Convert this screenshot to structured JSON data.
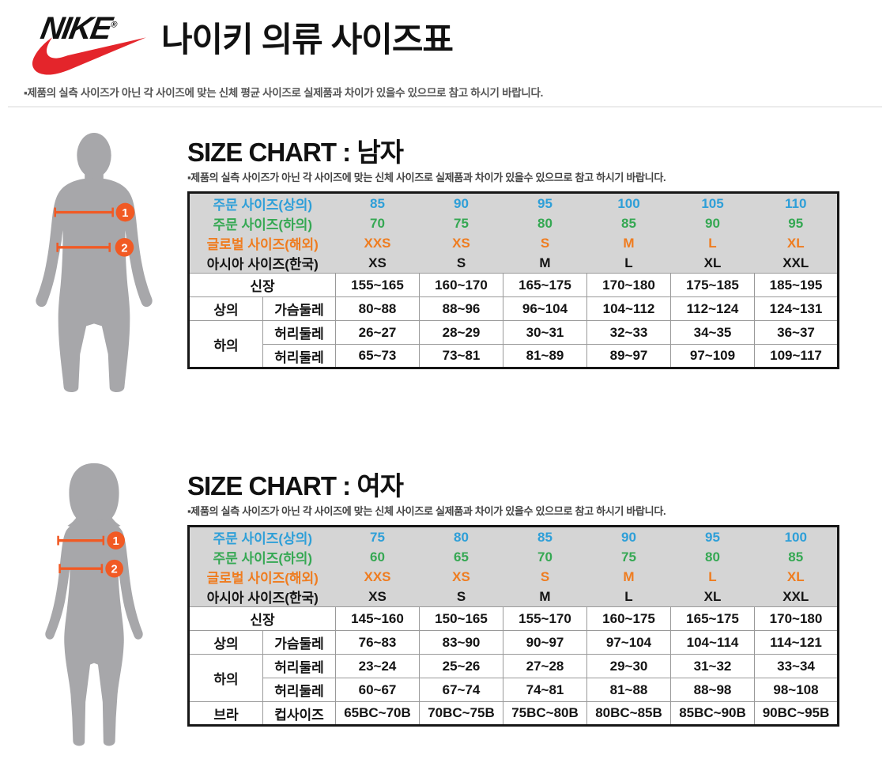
{
  "header": {
    "brand": "NIKE",
    "registered": "®",
    "title": "나이키 의류 사이즈표",
    "note": "▪제품의 실측 사이즈가 아닌 각 사이즈에 맞는 신체 평균 사이즈로 실제품과 차이가 있을수 있으므로 참고 하시기 바랍니다."
  },
  "colors": {
    "nike_red": "#e4252b",
    "accent_orange": "#f15a24",
    "silhouette_gray": "#a7a7aa",
    "table_header_bg": "#d5d5d5",
    "order_top_blue": "#2e9fd8",
    "order_bottom_green": "#35a853",
    "global_orange": "#ef7c1f",
    "asia_black": "#141414"
  },
  "sections": [
    {
      "id": "men",
      "title": "SIZE CHART : 남자",
      "note": "▪제품의 실측 사이즈가 아닌 각 사이즈에 맞는 신체 사이즈로 실제품과 차이가 있을수 있으므로 참고 하시기 바랍니다.",
      "figure": "male-body-silhouette",
      "markers": [
        "1",
        "2"
      ],
      "table": {
        "header_rows": [
          {
            "label": "주문 사이즈(상의)",
            "color": "#2e9fd8",
            "values": [
              "85",
              "90",
              "95",
              "100",
              "105",
              "110"
            ]
          },
          {
            "label": "주문 사이즈(하의)",
            "color": "#35a853",
            "values": [
              "70",
              "75",
              "80",
              "85",
              "90",
              "95"
            ]
          },
          {
            "label": "글로벌 사이즈(해외)",
            "color": "#ef7c1f",
            "values": [
              "XXS",
              "XS",
              "S",
              "M",
              "L",
              "XL"
            ]
          },
          {
            "label": "아시아 사이즈(한국)",
            "color": "#141414",
            "values": [
              "XS",
              "S",
              "M",
              "L",
              "XL",
              "XXL"
            ]
          }
        ],
        "body_rows": [
          {
            "group": "신장",
            "group_colspan": 2,
            "values": [
              "155~165",
              "160~170",
              "165~175",
              "170~180",
              "175~185",
              "185~195"
            ]
          },
          {
            "group": "상의",
            "label": "가슴둘레",
            "values": [
              "80~88",
              "88~96",
              "96~104",
              "104~112",
              "112~124",
              "124~131"
            ]
          },
          {
            "group": "하의",
            "group_rowspan": 2,
            "label": "허리둘레",
            "values": [
              "26~27",
              "28~29",
              "30~31",
              "32~33",
              "34~35",
              "36~37"
            ]
          },
          {
            "label": "허리둘레",
            "values": [
              "65~73",
              "73~81",
              "81~89",
              "89~97",
              "97~109",
              "109~117"
            ]
          }
        ]
      }
    },
    {
      "id": "women",
      "title": "SIZE CHART : 여자",
      "note": "▪제품의 실측 사이즈가 아닌 각 사이즈에 맞는 신체 사이즈로 실제품과 차이가 있을수 있으므로 참고 하시기 바랍니다.",
      "figure": "female-body-silhouette",
      "markers": [
        "1",
        "2"
      ],
      "table": {
        "header_rows": [
          {
            "label": "주문 사이즈(상의)",
            "color": "#2e9fd8",
            "values": [
              "75",
              "80",
              "85",
              "90",
              "95",
              "100"
            ]
          },
          {
            "label": "주문 사이즈(하의)",
            "color": "#35a853",
            "values": [
              "60",
              "65",
              "70",
              "75",
              "80",
              "85"
            ]
          },
          {
            "label": "글로벌 사이즈(해외)",
            "color": "#ef7c1f",
            "values": [
              "XXS",
              "XS",
              "S",
              "M",
              "L",
              "XL"
            ]
          },
          {
            "label": "아시아 사이즈(한국)",
            "color": "#141414",
            "values": [
              "XS",
              "S",
              "M",
              "L",
              "XL",
              "XXL"
            ]
          }
        ],
        "body_rows": [
          {
            "group": "신장",
            "group_colspan": 2,
            "values": [
              "145~160",
              "150~165",
              "155~170",
              "160~175",
              "165~175",
              "170~180"
            ]
          },
          {
            "group": "상의",
            "label": "가슴둘레",
            "values": [
              "76~83",
              "83~90",
              "90~97",
              "97~104",
              "104~114",
              "114~121"
            ]
          },
          {
            "group": "하의",
            "group_rowspan": 2,
            "label": "허리둘레",
            "values": [
              "23~24",
              "25~26",
              "27~28",
              "29~30",
              "31~32",
              "33~34"
            ]
          },
          {
            "label": "허리둘레",
            "values": [
              "60~67",
              "67~74",
              "74~81",
              "81~88",
              "88~98",
              "98~108"
            ]
          },
          {
            "group": "브라",
            "label": "컵사이즈",
            "values": [
              "65BC~70B",
              "70BC~75B",
              "75BC~80B",
              "80BC~85B",
              "85BC~90B",
              "90BC~95B"
            ]
          }
        ]
      }
    }
  ]
}
